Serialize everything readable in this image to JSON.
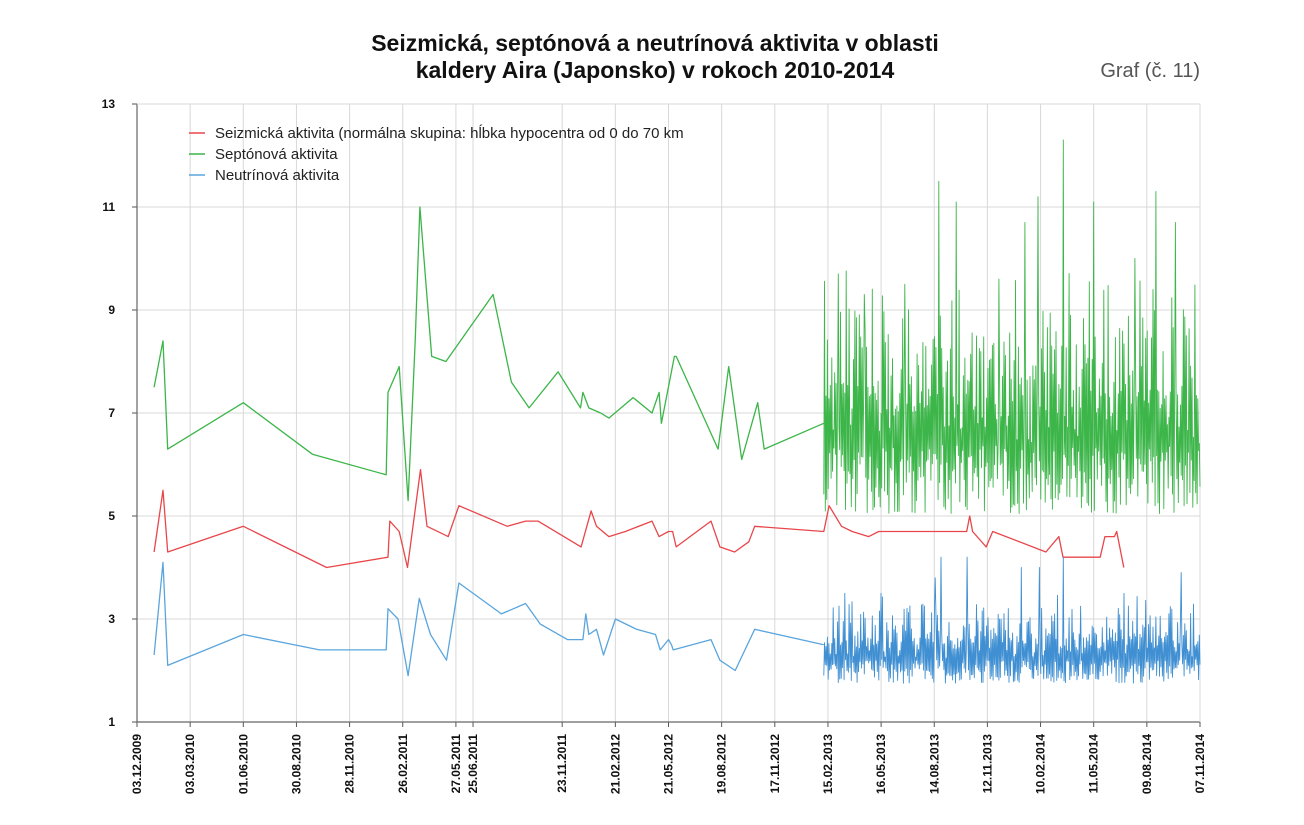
{
  "header": {
    "title_line1": "Seizmická, septónová a neutrínová aktivita v oblasti",
    "title_line2": "kaldery Aira (Japonsko) v rokoch 2010-2014",
    "graph_label": "Graf (č. 11)"
  },
  "chart_data": {
    "type": "line",
    "title": "Seizmická, septónová a neutrínová aktivita v oblasti kaldery Aira (Japonsko) v rokoch 2010-2014",
    "xlabel": "",
    "ylabel": "",
    "ylim": [
      1,
      13
    ],
    "yticks": [
      1,
      3,
      5,
      7,
      9,
      11,
      13
    ],
    "xlim": [
      "03.12.2009",
      "07.11.2014"
    ],
    "x_tick_labels": [
      "03.12.2009",
      "03.03.2010",
      "01.06.2010",
      "30.08.2010",
      "28.11.2010",
      "26.02.2011",
      "27.05.2011",
      "25.06.2011",
      "23.11.2011",
      "21.02.2012",
      "21.05.2012",
      "19.08.2012",
      "17.11.2012",
      "15.02.2013",
      "16.05.2013",
      "14.08.2013",
      "12.11.2013",
      "10.02.2014",
      "11.05.2014",
      "09.08.2014",
      "07.11.2014"
    ],
    "grid": true,
    "legend_position": "top-left",
    "series": [
      {
        "name": "Seizmická aktivita (normálna skupina: hĺbka hypocentra od 0 do 70 km",
        "color": "#e8464a",
        "x": [
          "2010-01-01",
          "2010-01-16",
          "2010-01-24",
          "2010-06-01",
          "2010-10-20",
          "2011-02-01",
          "2011-02-04",
          "2011-02-20",
          "2011-03-06",
          "2011-03-28",
          "2011-04-08",
          "2011-05-14",
          "2011-06-01",
          "2011-08-22",
          "2011-09-22",
          "2011-10-13",
          "2011-12-25",
          "2012-01-11",
          "2012-01-20",
          "2012-02-10",
          "2012-03-09",
          "2012-04-23",
          "2012-05-05",
          "2012-05-21",
          "2012-05-28",
          "2012-06-03",
          "2012-08-01",
          "2012-08-16",
          "2012-09-10",
          "2012-10-04",
          "2012-10-14",
          "2013-02-08",
          "2013-02-17",
          "2013-03-10",
          "2013-03-28",
          "2013-04-25",
          "2013-05-12",
          "2013-10-08",
          "2013-10-13",
          "2013-10-18",
          "2013-11-10",
          "2013-11-21",
          "2014-02-19",
          "2014-03-13",
          "2014-03-20",
          "2014-05-22",
          "2014-05-30",
          "2014-06-15",
          "2014-06-19",
          "2014-07-01"
        ],
        "y": [
          4.3,
          5.5,
          4.3,
          4.8,
          4.0,
          4.2,
          4.9,
          4.7,
          4.0,
          5.9,
          4.8,
          4.6,
          5.2,
          4.8,
          4.9,
          4.9,
          4.4,
          5.1,
          4.8,
          4.6,
          4.7,
          4.9,
          4.6,
          4.7,
          4.7,
          4.4,
          4.9,
          4.4,
          4.3,
          4.5,
          4.8,
          4.7,
          5.2,
          4.8,
          4.7,
          4.6,
          4.7,
          4.7,
          5.0,
          4.7,
          4.4,
          4.7,
          4.3,
          4.6,
          4.2,
          4.2,
          4.6,
          4.6,
          4.7,
          4.0
        ]
      },
      {
        "name": "Septónová aktivita",
        "color": "#3cb549",
        "x": [
          "2010-01-01",
          "2010-01-16",
          "2010-01-24",
          "2010-06-01",
          "2010-09-26",
          "2011-01-29",
          "2011-02-01",
          "2011-02-20",
          "2011-03-07",
          "2011-03-19",
          "2011-03-27",
          "2011-04-16",
          "2011-05-10",
          "2011-07-29",
          "2011-08-29",
          "2011-09-28",
          "2011-11-16",
          "2011-12-24",
          "2011-12-28",
          "2012-01-07",
          "2012-01-27",
          "2012-02-10",
          "2012-03-22",
          "2012-04-23",
          "2012-05-05",
          "2012-05-09",
          "2012-05-31",
          "2012-06-03",
          "2012-08-13",
          "2012-08-31",
          "2012-09-22",
          "2012-10-19",
          "2012-10-30",
          "2013-02-08"
        ],
        "y": [
          7.5,
          8.4,
          6.3,
          7.2,
          6.2,
          5.8,
          7.4,
          7.9,
          5.3,
          8.4,
          11.0,
          8.1,
          8.0,
          9.3,
          7.6,
          7.1,
          7.8,
          7.1,
          7.4,
          7.1,
          7.0,
          6.9,
          7.3,
          7.0,
          7.4,
          6.8,
          8.1,
          8.1,
          6.3,
          7.9,
          6.1,
          7.2,
          6.3,
          6.8
        ],
        "dense_segment": {
          "x_range": [
            "2013-02-08",
            "2014-11-07"
          ],
          "y_range": [
            4.9,
            12.3
          ],
          "peak_dates": [
            "2013-03-05",
            "2013-04-18",
            "2013-06-25",
            "2013-08-22",
            "2013-09-20",
            "2013-12-01",
            "2014-01-15",
            "2014-02-06",
            "2014-03-21",
            "2014-05-11",
            "2014-07-20",
            "2014-08-24",
            "2014-09-26"
          ],
          "peak_values": [
            9.7,
            9.3,
            9.5,
            11.5,
            11.1,
            9.6,
            10.7,
            11.2,
            12.3,
            11.1,
            10.0,
            11.3,
            10.7
          ]
        }
      },
      {
        "name": "Neutrínová aktivita",
        "color": "#5aa5dd",
        "x": [
          "2010-01-01",
          "2010-01-16",
          "2010-01-24",
          "2010-06-01",
          "2010-10-08",
          "2011-01-29",
          "2011-02-01",
          "2011-02-18",
          "2011-03-07",
          "2011-03-26",
          "2011-04-14",
          "2011-05-11",
          "2011-06-01",
          "2011-08-12",
          "2011-09-22",
          "2011-10-17",
          "2011-12-02",
          "2011-12-28",
          "2012-01-02",
          "2012-01-07",
          "2012-01-20",
          "2012-02-01",
          "2012-02-21",
          "2012-03-28",
          "2012-04-29",
          "2012-05-07",
          "2012-05-21",
          "2012-05-26",
          "2012-05-29",
          "2012-08-01",
          "2012-08-16",
          "2012-09-11",
          "2012-10-14",
          "2013-02-08"
        ],
        "y": [
          2.3,
          4.1,
          2.1,
          2.7,
          2.4,
          2.4,
          3.2,
          3.0,
          1.9,
          3.4,
          2.7,
          2.2,
          3.7,
          3.1,
          3.3,
          2.9,
          2.6,
          2.6,
          3.1,
          2.7,
          2.8,
          2.3,
          3.0,
          2.8,
          2.7,
          2.4,
          2.6,
          2.5,
          2.4,
          2.6,
          2.2,
          2.0,
          2.8,
          2.5
        ],
        "dense_segment": {
          "x_range": [
            "2013-02-08",
            "2014-11-07"
          ],
          "y_range": [
            1.7,
            4.3
          ],
          "peak_dates": [
            "2013-03-16",
            "2013-05-16",
            "2013-08-16",
            "2013-08-25",
            "2013-10-08",
            "2014-01-08",
            "2014-02-08",
            "2014-03-21",
            "2014-07-01",
            "2014-10-06"
          ],
          "peak_values": [
            3.5,
            3.5,
            3.8,
            4.2,
            4.2,
            4.0,
            4.0,
            4.2,
            3.5,
            3.9
          ]
        }
      }
    ]
  }
}
